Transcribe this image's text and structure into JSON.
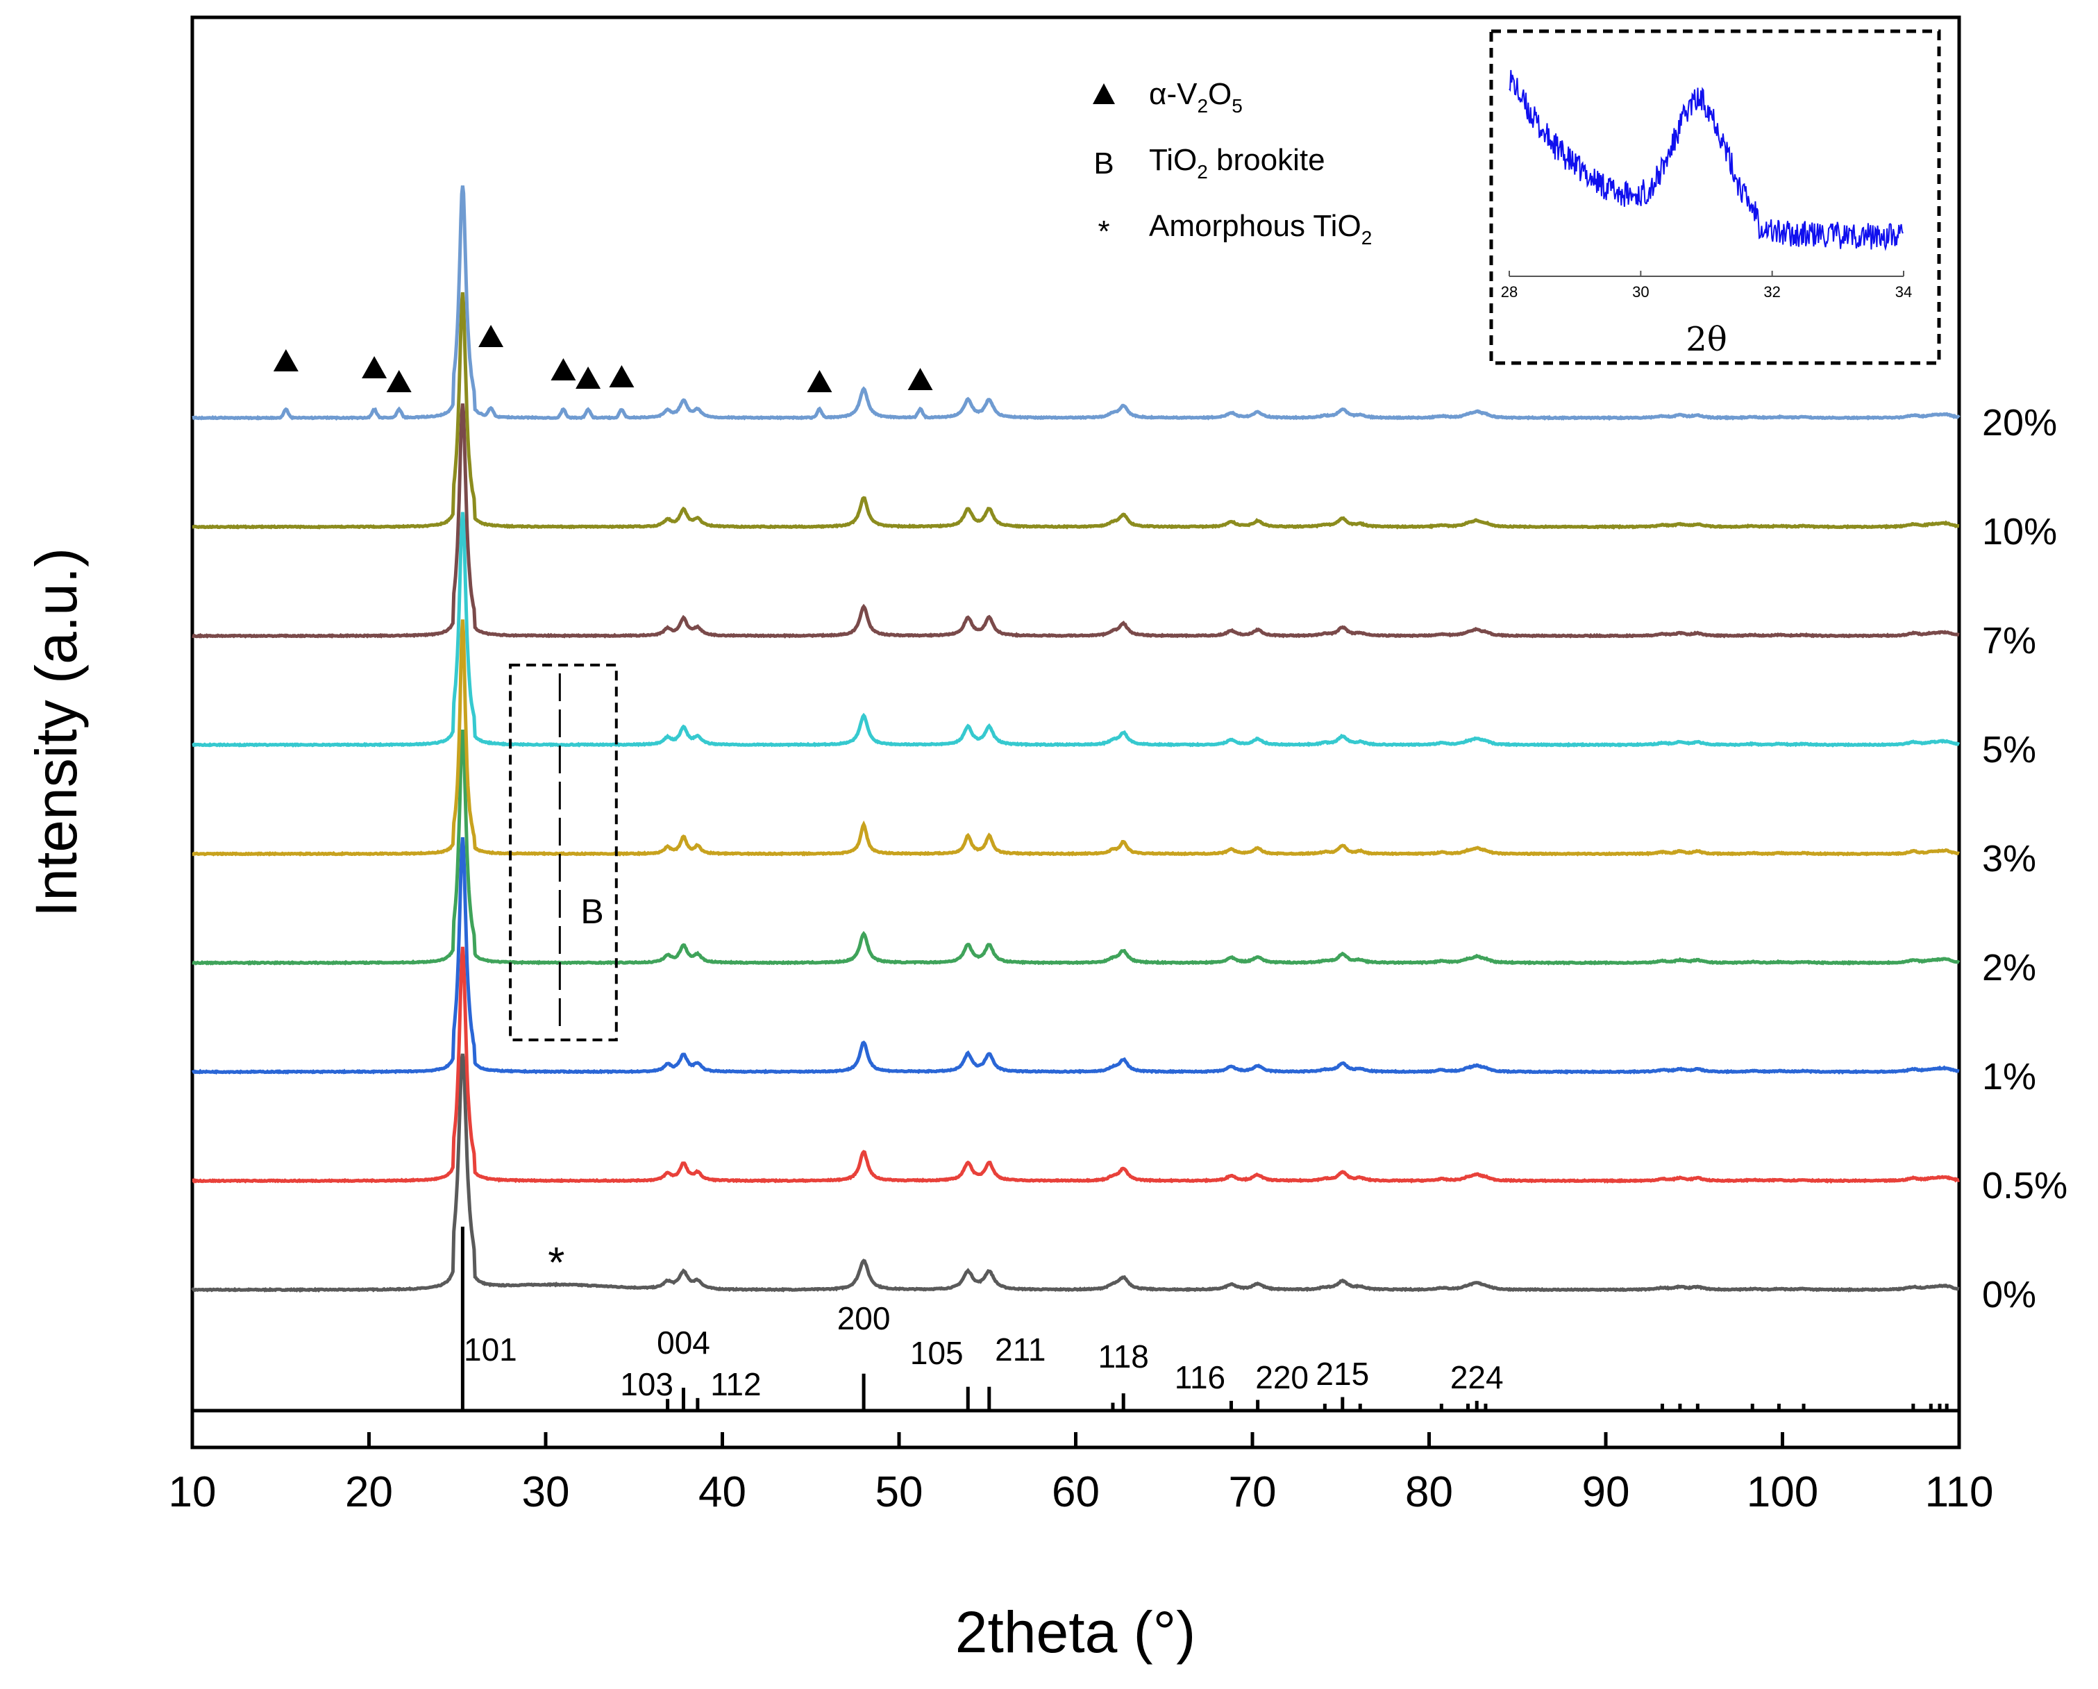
{
  "chart_data": {
    "type": "line",
    "title": "",
    "xlabel": "2theta (°)",
    "ylabel": "Intensity (a.u.)",
    "xlim": [
      10,
      110
    ],
    "xticks": [
      "10",
      "20",
      "30",
      "40",
      "50",
      "60",
      "70",
      "80",
      "90",
      "100",
      "110"
    ],
    "series": [
      {
        "name": "0%",
        "label": "0%",
        "color": "#5a5a5a",
        "offset_rank": 0
      },
      {
        "name": "0.5%",
        "label": "0.5%",
        "color": "#e8413a",
        "offset_rank": 1
      },
      {
        "name": "1%",
        "label": "1%",
        "color": "#2a66d6",
        "offset_rank": 2
      },
      {
        "name": "2%",
        "label": "2%",
        "color": "#3fa35a",
        "offset_rank": 3
      },
      {
        "name": "3%",
        "label": "3%",
        "color": "#c8a21e",
        "offset_rank": 4
      },
      {
        "name": "5%",
        "label": "5%",
        "color": "#36c9cf",
        "offset_rank": 5
      },
      {
        "name": "7%",
        "label": "7%",
        "color": "#7a4a4a",
        "offset_rank": 6
      },
      {
        "name": "10%",
        "label": "10%",
        "color": "#8c8c1e",
        "offset_rank": 7
      },
      {
        "name": "20%",
        "label": "20%",
        "color": "#6f9bd1",
        "offset_rank": 8
      }
    ],
    "anatase_peaks": [
      {
        "two_theta": 25.3,
        "intensity": 100
      },
      {
        "two_theta": 36.9,
        "intensity": 8
      },
      {
        "two_theta": 37.8,
        "intensity": 20
      },
      {
        "two_theta": 38.6,
        "intensity": 9
      },
      {
        "two_theta": 48.0,
        "intensity": 35
      },
      {
        "two_theta": 53.9,
        "intensity": 21
      },
      {
        "two_theta": 55.1,
        "intensity": 21
      },
      {
        "two_theta": 62.1,
        "intensity": 4
      },
      {
        "two_theta": 62.7,
        "intensity": 14
      },
      {
        "two_theta": 68.8,
        "intensity": 6
      },
      {
        "two_theta": 70.3,
        "intensity": 7
      },
      {
        "two_theta": 74.1,
        "intensity": 2
      },
      {
        "two_theta": 75.1,
        "intensity": 10
      },
      {
        "two_theta": 76.1,
        "intensity": 3
      },
      {
        "two_theta": 80.7,
        "intensity": 2
      },
      {
        "two_theta": 82.2,
        "intensity": 3
      },
      {
        "two_theta": 82.7,
        "intensity": 6
      },
      {
        "two_theta": 83.2,
        "intensity": 3
      },
      {
        "two_theta": 93.2,
        "intensity": 2
      },
      {
        "two_theta": 94.2,
        "intensity": 3
      },
      {
        "two_theta": 95.2,
        "intensity": 3
      },
      {
        "two_theta": 98.3,
        "intensity": 1
      },
      {
        "two_theta": 99.8,
        "intensity": 1
      },
      {
        "two_theta": 101.2,
        "intensity": 1
      },
      {
        "two_theta": 107.4,
        "intensity": 3
      },
      {
        "two_theta": 108.4,
        "intensity": 2
      },
      {
        "two_theta": 108.9,
        "intensity": 2
      },
      {
        "two_theta": 109.3,
        "intensity": 3
      }
    ],
    "hkl_labels": [
      {
        "text": "101",
        "two_theta": 25.3
      },
      {
        "text": "103",
        "two_theta": 36.9
      },
      {
        "text": "004",
        "two_theta": 37.8
      },
      {
        "text": "112",
        "two_theta": 38.6
      },
      {
        "text": "200",
        "two_theta": 48.0
      },
      {
        "text": "105",
        "two_theta": 53.9
      },
      {
        "text": "211",
        "two_theta": 55.1
      },
      {
        "text": "118",
        "two_theta": 62.7
      },
      {
        "text": "116",
        "two_theta": 68.8
      },
      {
        "text": "220",
        "two_theta": 70.3
      },
      {
        "text": "215",
        "two_theta": 75.1
      },
      {
        "text": "224",
        "two_theta": 82.7
      }
    ],
    "v2o5_markers_20pct": [
      15.3,
      20.3,
      21.7,
      26.9,
      31.0,
      32.4,
      34.3,
      45.5,
      51.2
    ],
    "brookite_region": {
      "label": "B",
      "x_range": [
        28,
        34
      ],
      "line_at": 30.8
    },
    "amorphous_marker": {
      "two_theta": 30.6,
      "symbol": "*"
    },
    "legend": [
      {
        "symbol": "▲",
        "text": "α-V",
        "sub1": "2",
        "mid": "O",
        "sub2": "5"
      },
      {
        "symbol": "B",
        "text": "TiO",
        "sub1": "2",
        "mid": " brookite",
        "sub2": ""
      },
      {
        "symbol": "*",
        "text": "Amorphous TiO",
        "sub1": "2",
        "mid": "",
        "sub2": ""
      }
    ],
    "inset": {
      "xlabel": "2θ",
      "xlim": [
        28,
        34
      ],
      "xticks": [
        "28",
        "30",
        "32",
        "34"
      ],
      "series_color": "#1010ee",
      "feature": "broad brookite peak near 30.8"
    }
  }
}
